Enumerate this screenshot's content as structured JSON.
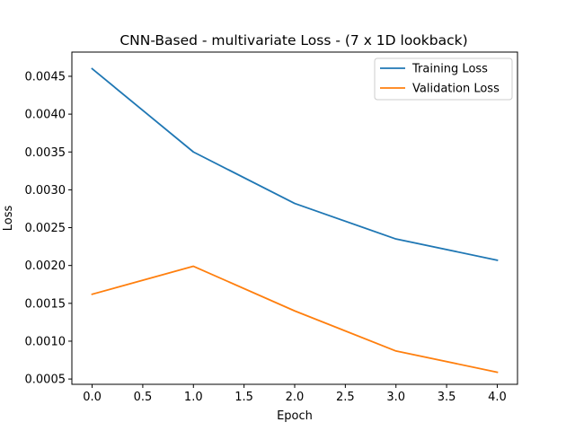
{
  "chart_data": {
    "type": "line",
    "title": "CNN-Based - multivariate Loss - (7 x 1D lookback)",
    "xlabel": "Epoch",
    "ylabel": "Loss",
    "x": [
      0,
      1,
      2,
      3,
      4
    ],
    "xlim": [
      -0.2,
      4.2
    ],
    "ylim": [
      0.00043,
      0.00482
    ],
    "xticks": [
      0.0,
      0.5,
      1.0,
      1.5,
      2.0,
      2.5,
      3.0,
      3.5,
      4.0
    ],
    "xtick_labels": [
      "0.0",
      "0.5",
      "1.0",
      "1.5",
      "2.0",
      "2.5",
      "3.0",
      "3.5",
      "4.0"
    ],
    "yticks": [
      0.0005,
      0.001,
      0.0015,
      0.002,
      0.0025,
      0.003,
      0.0035,
      0.004,
      0.0045
    ],
    "ytick_labels": [
      "0.0005",
      "0.0010",
      "0.0015",
      "0.0020",
      "0.0025",
      "0.0030",
      "0.0035",
      "0.0040",
      "0.0045"
    ],
    "grid": false,
    "legend_position": "top-right",
    "series": [
      {
        "name": "Training Loss",
        "color": "#1f77b4",
        "values": [
          0.0046,
          0.0035,
          0.00282,
          0.00235,
          0.00207
        ]
      },
      {
        "name": "Validation Loss",
        "color": "#ff7f0e",
        "values": [
          0.00162,
          0.00199,
          0.0014,
          0.00087,
          0.00059
        ]
      }
    ]
  }
}
